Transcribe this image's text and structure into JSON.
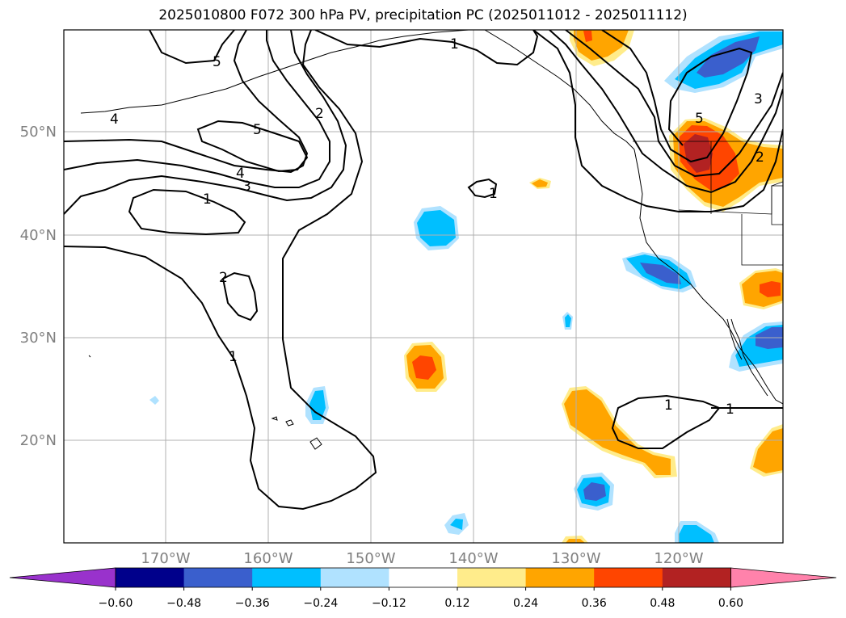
{
  "title": "2025010800 F072 300 hPa PV, precipitation PC (2025011012 - 2025011112)",
  "map": {
    "lat_labels": [
      "50°N",
      "40°N",
      "30°N",
      "20°N"
    ],
    "lon_labels": [
      "170°W",
      "160°W",
      "150°W",
      "140°W",
      "130°W",
      "120°W"
    ],
    "pv_contour_labels": [
      "5",
      "4",
      "5",
      "4",
      "3",
      "2",
      "1",
      "1",
      "2",
      "1",
      "1",
      "1",
      "1",
      "5",
      "3",
      "2",
      "1"
    ]
  },
  "colorbar": {
    "ticks": [
      "−0.60",
      "−0.48",
      "−0.36",
      "−0.24",
      "−0.12",
      "0.12",
      "0.24",
      "0.36",
      "0.48",
      "0.60"
    ],
    "colors": [
      "#9932cc",
      "#00008b",
      "#3a5fcd",
      "#00bfff",
      "#b0e2ff",
      "#ffffff",
      "#ffec8b",
      "#ffa500",
      "#ff4500",
      "#b22222",
      "#ff82ab"
    ],
    "extend": "both"
  }
}
